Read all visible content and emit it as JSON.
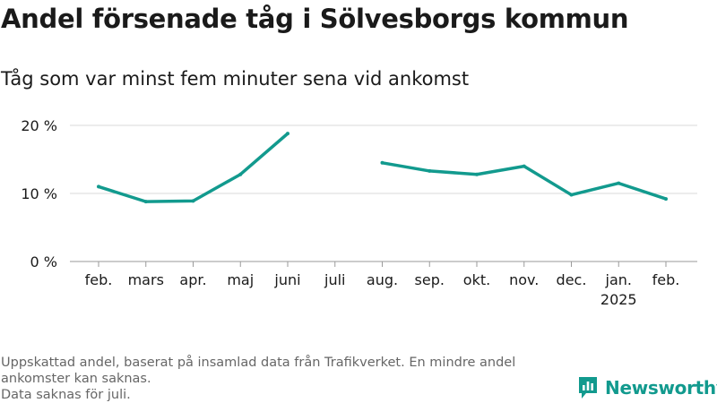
{
  "title": "Andel försenade tåg i Sölvesborgs kommun",
  "subtitle": "Tåg som var minst fem minuter sena vid ankomst",
  "notes": [
    "Uppskattad andel, baserat på insamlad data från Trafikverket. En mindre andel ankomster kan saknas.",
    "Data saknas för juli."
  ],
  "brand": {
    "name": "Newsworthy",
    "icon": "newsworthy-logo-icon",
    "color": "#129a8e"
  },
  "chart_data": {
    "type": "line",
    "title": "Andel försenade tåg i Sölvesborgs kommun",
    "subtitle": "Tåg som var minst fem minuter sena vid ankomst",
    "xlabel": "",
    "ylabel": "",
    "grid": true,
    "categories": [
      "feb.",
      "mars",
      "apr.",
      "maj",
      "juni",
      "juli",
      "aug.",
      "sep.",
      "okt.",
      "nov.",
      "dec.",
      "jan.",
      "feb."
    ],
    "category_sublabels": [
      "",
      "",
      "",
      "",
      "",
      "",
      "",
      "",
      "",
      "",
      "",
      "2025",
      ""
    ],
    "series": [
      {
        "name": "Andel försenade tåg",
        "color": "#129a8e",
        "values": [
          11.0,
          8.8,
          8.9,
          12.8,
          18.8,
          null,
          14.5,
          13.3,
          12.8,
          14.0,
          9.8,
          11.5,
          9.2
        ]
      }
    ],
    "ylim": [
      0,
      20
    ],
    "yticks": [
      0,
      10,
      20
    ],
    "ytick_labels": [
      "0 %",
      "10 %",
      "20 %"
    ]
  }
}
